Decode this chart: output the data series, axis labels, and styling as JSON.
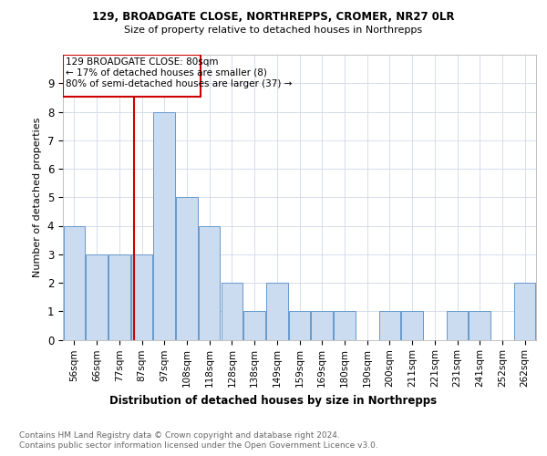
{
  "title1": "129, BROADGATE CLOSE, NORTHREPPS, CROMER, NR27 0LR",
  "title2": "Size of property relative to detached houses in Northrepps",
  "xlabel": "Distribution of detached houses by size in Northrepps",
  "ylabel": "Number of detached properties",
  "categories": [
    "56sqm",
    "66sqm",
    "77sqm",
    "87sqm",
    "97sqm",
    "108sqm",
    "118sqm",
    "128sqm",
    "138sqm",
    "149sqm",
    "159sqm",
    "169sqm",
    "180sqm",
    "190sqm",
    "200sqm",
    "211sqm",
    "221sqm",
    "231sqm",
    "241sqm",
    "252sqm",
    "262sqm"
  ],
  "values": [
    4,
    3,
    3,
    3,
    8,
    5,
    4,
    2,
    1,
    2,
    1,
    1,
    1,
    0,
    1,
    1,
    0,
    1,
    1,
    0,
    2
  ],
  "bar_color": "#ccdcf0",
  "bar_edge_color": "#6699cc",
  "reference_line_label": "129 BROADGATE CLOSE: 80sqm",
  "annotation_line1": "← 17% of detached houses are smaller (8)",
  "annotation_line2": "80% of semi-detached houses are larger (37) →",
  "ylim": [
    0,
    10
  ],
  "yticks": [
    0,
    1,
    2,
    3,
    4,
    5,
    6,
    7,
    8,
    9
  ],
  "footnote1": "Contains HM Land Registry data © Crown copyright and database right 2024.",
  "footnote2": "Contains public sector information licensed under the Open Government Licence v3.0.",
  "bg_color": "#ffffff",
  "grid_color": "#d0d8e8"
}
